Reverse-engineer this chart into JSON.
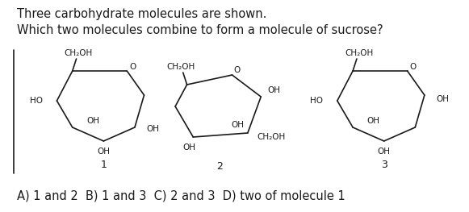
{
  "title_line1": "Three carbohydrate molecules are shown.",
  "title_line2": "Which two molecules combine to form a molecule of sucrose?",
  "answer_line": "A) 1 and 2  B) 1 and 3  C) 2 and 3  D) two of molecule 1",
  "bg_color": "#ffffff",
  "text_color": "#1a1a1a",
  "font_size_title": 10.5,
  "font_size_answer": 10.5,
  "font_size_label": 7.5,
  "font_size_num": 9.0,
  "lw": 1.2
}
